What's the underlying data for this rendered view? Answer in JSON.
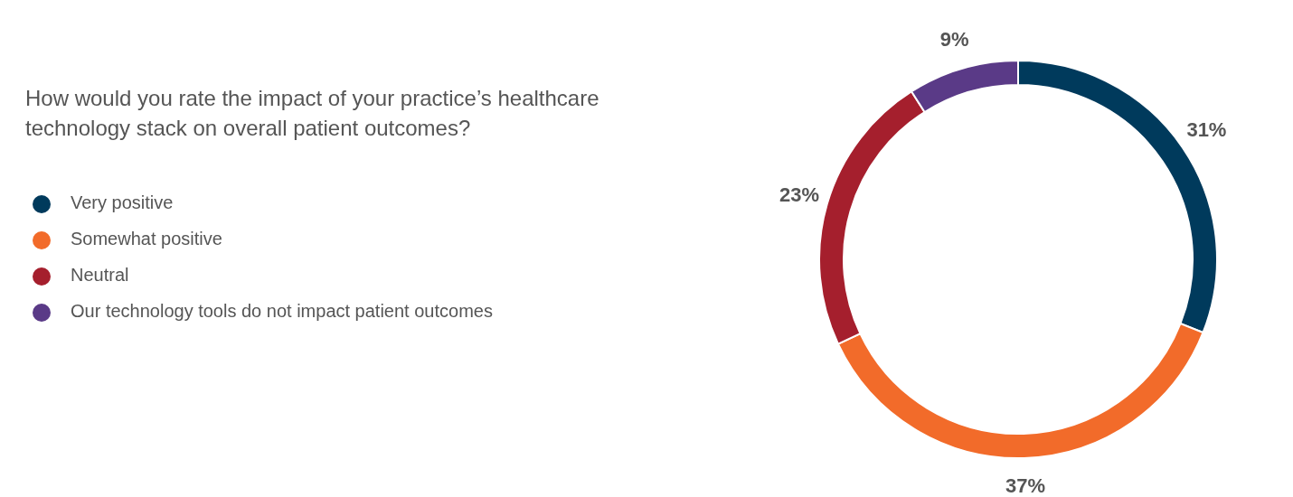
{
  "chart_data": {
    "type": "donut",
    "title": "How would you rate the impact of your practice’s healthcare technology stack on overall patient outcomes?",
    "categories": [
      "Very positive",
      "Somewhat positive",
      "Neutral",
      "Our technology tools do not impact patient outcomes"
    ],
    "values": [
      31,
      37,
      23,
      9
    ],
    "colors": [
      "#003a5c",
      "#f26b2a",
      "#a51f2d",
      "#5a3a87"
    ],
    "value_labels": [
      "31%",
      "37%",
      "23%",
      "9%"
    ],
    "legend": "left"
  }
}
